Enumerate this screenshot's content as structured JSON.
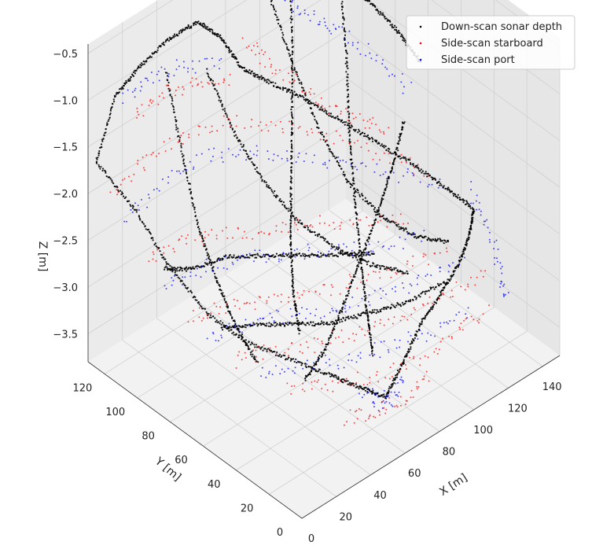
{
  "chart_data": {
    "type": "scatter",
    "view": "3d",
    "xlabel": "X [m]",
    "ylabel": "Y [m]",
    "zlabel": "Z [m]",
    "xlim": [
      0,
      150
    ],
    "ylim": [
      0,
      130
    ],
    "zlim": [
      -3.8,
      -0.4
    ],
    "x_ticks": [
      0,
      20,
      40,
      60,
      80,
      100,
      120,
      140
    ],
    "y_ticks": [
      0,
      20,
      40,
      60,
      80,
      100,
      120
    ],
    "z_ticks": [
      -3.5,
      -3.0,
      -2.5,
      -2.0,
      -1.5,
      -1.0,
      -0.5
    ],
    "z_tick_labels": [
      "−3.5",
      "−3.0",
      "−2.5",
      "−2.0",
      "−1.5",
      "−1.0",
      "−0.5"
    ],
    "grid": true,
    "legend_position": "top-right",
    "series": [
      {
        "name": "Down-scan sonar depth",
        "color": "#000000",
        "tracks": [
          [
            [
              0,
              125,
              -1.6
            ],
            [
              10,
              124,
              -1.0
            ],
            [
              22,
              122,
              -0.8
            ],
            [
              36,
              118,
              -0.6
            ],
            [
              48,
              113,
              -0.5
            ],
            [
              56,
              108,
              -0.7
            ],
            [
              62,
              102,
              -1.0
            ]
          ],
          [
            [
              62,
              102,
              -1.0
            ],
            [
              72,
              96,
              -1.2
            ],
            [
              84,
              88,
              -1.4
            ],
            [
              98,
              80,
              -1.7
            ],
            [
              112,
              72,
              -2.0
            ],
            [
              126,
              64,
              -2.3
            ],
            [
              138,
              56,
              -2.6
            ],
            [
              146,
              48,
              -2.8
            ]
          ],
          [
            [
              0,
              125,
              -1.6
            ],
            [
              8,
              110,
              -2.0
            ],
            [
              14,
              95,
              -2.5
            ],
            [
              22,
              80,
              -2.9
            ],
            [
              30,
              65,
              -3.1
            ],
            [
              40,
              50,
              -3.2
            ],
            [
              50,
              35,
              -3.3
            ],
            [
              58,
              25,
              -3.4
            ],
            [
              66,
              18,
              -3.5
            ]
          ],
          [
            [
              66,
              18,
              -3.5
            ],
            [
              78,
              20,
              -3.3
            ],
            [
              92,
              24,
              -3.1
            ],
            [
              108,
              28,
              -3.0
            ],
            [
              122,
              32,
              -2.9
            ],
            [
              134,
              38,
              -2.8
            ],
            [
              146,
              48,
              -2.8
            ]
          ],
          [
            [
              100,
              112,
              -0.5
            ],
            [
              110,
              108,
              -0.6
            ],
            [
              120,
              102,
              -0.8
            ],
            [
              130,
              95,
              -1.0
            ],
            [
              138,
              86,
              -1.3
            ],
            [
              144,
              78,
              -1.6
            ]
          ],
          [
            [
              100,
              112,
              -0.5
            ],
            [
              94,
              104,
              -1.2
            ],
            [
              86,
              96,
              -1.8
            ],
            [
              78,
              88,
              -2.3
            ],
            [
              70,
              80,
              -2.7
            ],
            [
              62,
              70,
              -3.0
            ],
            [
              54,
              58,
              -3.2
            ]
          ],
          [
            [
              32,
              116,
              -0.9
            ],
            [
              30,
              104,
              -1.6
            ],
            [
              28,
              92,
              -2.2
            ],
            [
              27,
              80,
              -2.6
            ],
            [
              26,
              68,
              -2.9
            ],
            [
              28,
              56,
              -3.2
            ]
          ],
          [
            [
              50,
              110,
              -1.0
            ],
            [
              56,
              100,
              -1.6
            ],
            [
              64,
              90,
              -2.1
            ],
            [
              74,
              80,
              -2.5
            ],
            [
              86,
              70,
              -2.8
            ],
            [
              98,
              60,
              -3.0
            ],
            [
              110,
              50,
              -3.1
            ]
          ],
          [
            [
              118,
              100,
              -0.7
            ],
            [
              112,
              90,
              -1.3
            ],
            [
              104,
              80,
              -1.9
            ],
            [
              96,
              68,
              -2.4
            ],
            [
              88,
              56,
              -2.8
            ],
            [
              80,
              44,
              -3.1
            ],
            [
              72,
              32,
              -3.3
            ]
          ],
          [
            [
              12,
              96,
              -2.5
            ],
            [
              24,
              92,
              -2.6
            ],
            [
              40,
              88,
              -2.6
            ],
            [
              56,
              82,
              -2.7
            ],
            [
              72,
              76,
              -2.8
            ],
            [
              88,
              70,
              -2.9
            ],
            [
              104,
              64,
              -3.0
            ]
          ],
          [
            [
              20,
              70,
              -2.9
            ],
            [
              36,
              66,
              -3.0
            ],
            [
              52,
              60,
              -3.1
            ],
            [
              68,
              54,
              -3.2
            ],
            [
              84,
              48,
              -3.2
            ],
            [
              100,
              42,
              -3.2
            ],
            [
              118,
              36,
              -3.1
            ]
          ],
          [
            [
              86,
              110,
              -0.6
            ],
            [
              88,
              98,
              -1.2
            ],
            [
              92,
              86,
              -1.8
            ],
            [
              98,
              74,
              -2.3
            ],
            [
              106,
              62,
              -2.6
            ],
            [
              116,
              52,
              -2.8
            ],
            [
              128,
              44,
              -2.9
            ]
          ],
          [
            [
              40,
              40,
              -3.3
            ],
            [
              56,
              44,
              -3.2
            ],
            [
              72,
              50,
              -3.0
            ],
            [
              90,
              58,
              -2.8
            ],
            [
              108,
              66,
              -2.6
            ],
            [
              124,
              74,
              -2.4
            ],
            [
              138,
              82,
              -2.2
            ]
          ]
        ]
      },
      {
        "name": "Side-scan starboard",
        "color": "#ff0000",
        "tracks": [
          [
            [
              2,
              118,
              -1.9
            ],
            [
              20,
              116,
              -1.7
            ],
            [
              40,
              112,
              -1.6
            ],
            [
              60,
              106,
              -1.6
            ],
            [
              80,
              98,
              -1.8
            ],
            [
              100,
              88,
              -2.0
            ],
            [
              120,
              78,
              -2.3
            ],
            [
              140,
              66,
              -2.6
            ]
          ],
          [
            [
              6,
              100,
              -2.4
            ],
            [
              26,
              98,
              -2.4
            ],
            [
              46,
              94,
              -2.5
            ],
            [
              66,
              88,
              -2.6
            ],
            [
              86,
              82,
              -2.7
            ],
            [
              106,
              74,
              -2.8
            ],
            [
              126,
              66,
              -2.9
            ]
          ],
          [
            [
              10,
              80,
              -2.8
            ],
            [
              30,
              78,
              -2.9
            ],
            [
              50,
              74,
              -3.0
            ],
            [
              70,
              68,
              -3.1
            ],
            [
              90,
              62,
              -3.1
            ],
            [
              110,
              54,
              -3.1
            ],
            [
              130,
              46,
              -3.0
            ]
          ],
          [
            [
              18,
              60,
              -3.1
            ],
            [
              38,
              58,
              -3.2
            ],
            [
              58,
              52,
              -3.3
            ],
            [
              78,
              46,
              -3.3
            ],
            [
              98,
              40,
              -3.3
            ],
            [
              118,
              34,
              -3.2
            ],
            [
              136,
              28,
              -3.1
            ]
          ],
          [
            [
              30,
              40,
              -3.3
            ],
            [
              50,
              36,
              -3.4
            ],
            [
              70,
              30,
              -3.5
            ],
            [
              90,
              26,
              -3.5
            ],
            [
              110,
              22,
              -3.4
            ],
            [
              128,
              20,
              -3.3
            ]
          ],
          [
            [
              70,
              108,
              -0.9
            ],
            [
              80,
              104,
              -1.2
            ],
            [
              92,
              98,
              -1.5
            ],
            [
              104,
              92,
              -1.8
            ],
            [
              116,
              86,
              -2.0
            ],
            [
              128,
              80,
              -2.2
            ]
          ],
          [
            [
              20,
              122,
              -1.3
            ],
            [
              34,
              120,
              -1.2
            ],
            [
              50,
              116,
              -1.2
            ],
            [
              66,
              110,
              -1.3
            ]
          ],
          [
            [
              44,
              20,
              -3.5
            ],
            [
              60,
              18,
              -3.6
            ],
            [
              76,
              16,
              -3.6
            ],
            [
              92,
              18,
              -3.5
            ]
          ]
        ]
      },
      {
        "name": "Side-scan port",
        "color": "#0000ff",
        "tracks": [
          [
            [
              4,
              112,
              -2.1
            ],
            [
              24,
              110,
              -1.9
            ],
            [
              44,
              106,
              -1.8
            ],
            [
              64,
              100,
              -1.9
            ],
            [
              84,
              92,
              -2.1
            ],
            [
              104,
              84,
              -2.3
            ],
            [
              124,
              74,
              -2.5
            ],
            [
              144,
              62,
              -2.7
            ]
          ],
          [
            [
              8,
              92,
              -2.6
            ],
            [
              28,
              90,
              -2.6
            ],
            [
              48,
              86,
              -2.7
            ],
            [
              68,
              80,
              -2.8
            ],
            [
              88,
              74,
              -2.9
            ],
            [
              108,
              66,
              -3.0
            ],
            [
              128,
              58,
              -3.0
            ]
          ],
          [
            [
              14,
              72,
              -3.0
            ],
            [
              34,
              70,
              -3.0
            ],
            [
              54,
              66,
              -3.1
            ],
            [
              74,
              60,
              -3.2
            ],
            [
              94,
              54,
              -3.2
            ],
            [
              114,
              48,
              -3.2
            ],
            [
              134,
              40,
              -3.1
            ]
          ],
          [
            [
              24,
              50,
              -3.2
            ],
            [
              44,
              48,
              -3.3
            ],
            [
              64,
              42,
              -3.4
            ],
            [
              84,
              36,
              -3.4
            ],
            [
              104,
              30,
              -3.4
            ],
            [
              124,
              26,
              -3.3
            ]
          ],
          [
            [
              60,
              26,
              -3.5
            ],
            [
              66,
              22,
              -3.6
            ],
            [
              72,
              20,
              -3.6
            ],
            [
              80,
              22,
              -3.5
            ]
          ],
          [
            [
              96,
              110,
              -0.8
            ],
            [
              106,
              104,
              -1.0
            ],
            [
              116,
              98,
              -1.2
            ],
            [
              128,
              90,
              -1.5
            ],
            [
              140,
              80,
              -1.9
            ]
          ],
          [
            [
              16,
              124,
              -1.1
            ],
            [
              30,
              122,
              -1.0
            ],
            [
              46,
              118,
              -1.0
            ],
            [
              62,
              112,
              -1.1
            ]
          ],
          [
            [
              146,
              50,
              -2.6
            ],
            [
              146,
              40,
              -2.9
            ],
            [
              144,
              30,
              -3.2
            ],
            [
              140,
              22,
              -3.4
            ]
          ]
        ]
      }
    ]
  }
}
